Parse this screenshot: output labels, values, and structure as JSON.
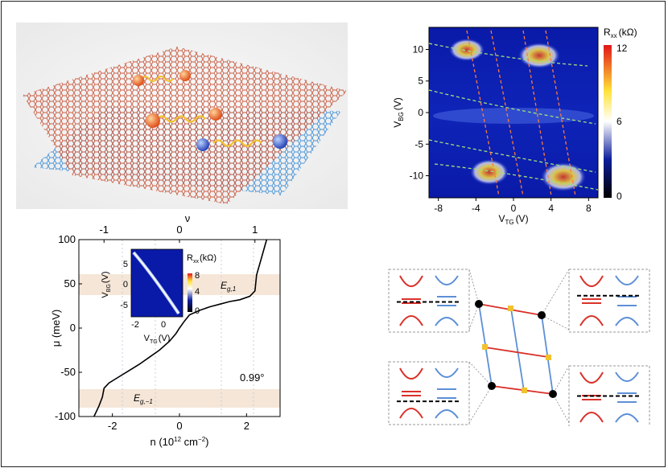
{
  "figure": {
    "panel_a": {
      "description_icon": "twisted-bilayer-graphene-illustration"
    },
    "panel_b": {
      "xlabel_main": "V",
      "xlabel_sub": "TG",
      "xlabel_unit": "(V)",
      "ylabel_main": "V",
      "ylabel_sub": "BG",
      "ylabel_unit": "(V)",
      "colorbar_label_main": "R",
      "colorbar_label_sub": "xx",
      "colorbar_label_unit": "(kΩ)",
      "colorbar_ticks": [
        "12",
        "6",
        "0"
      ],
      "xticks": [
        "-8",
        "-4",
        "0",
        "4",
        "8"
      ],
      "yticks": [
        "10",
        "5",
        "0",
        "-5",
        "-10"
      ]
    },
    "panel_c": {
      "xlabel": "n (10",
      "xlabel_exp1": "12",
      "xlabel_unit": " cm",
      "xlabel_exp2": "−2",
      "xlabel_close": ")",
      "ylabel": "μ (meV)",
      "top_label": "ν",
      "xticks": [
        "-2",
        "0",
        "2"
      ],
      "top_ticks": [
        "-1",
        "0",
        "1"
      ],
      "yticks": [
        "100",
        "50",
        "0",
        "-50",
        "-100"
      ],
      "angle_label": "0.99°",
      "gap_upper_label": "E",
      "gap_upper_sub": "g,1",
      "gap_lower_label": "E",
      "gap_lower_sub": "g,−1",
      "inset": {
        "xlabel_main": "V",
        "xlabel_sub": "TG",
        "xlabel_unit": "(V)",
        "ylabel_main": "V",
        "ylabel_sub": "BG",
        "ylabel_unit": "(V)",
        "colorbar_label_main": "R",
        "colorbar_label_sub": "xx",
        "colorbar_label_unit": "(kΩ)",
        "xticks": [
          "-2",
          "0"
        ],
        "yticks": [
          "5",
          "0",
          "-5"
        ],
        "colorbar_ticks": [
          "8",
          "4",
          "0"
        ]
      }
    },
    "panel_d": {
      "description_icon": "band-alignment-schematic"
    },
    "colors": {
      "red": "#d8322a",
      "blue": "#5d8fd6",
      "gap_band": "#f5e6d8",
      "accent_yellow": "#f2c12e"
    }
  },
  "chart_data": [
    {
      "type": "heatmap",
      "title": "",
      "xlabel": "V_TG (V)",
      "ylabel": "V_BG (V)",
      "xlim": [
        -9,
        9
      ],
      "ylim": [
        -13.5,
        13.5
      ],
      "colorbar": {
        "label": "R_xx (kΩ)",
        "range": [
          0,
          12
        ]
      }
    },
    {
      "type": "line",
      "title": "",
      "xlabel": "n (10^12 cm^-2)",
      "ylabel": "μ (meV)",
      "xlim": [
        -3.0,
        3.0
      ],
      "ylim": [
        -100,
        100
      ],
      "top_axis": {
        "label": "ν",
        "ticks": [
          -1,
          0,
          1
        ]
      },
      "series": [
        {
          "x": [
            -2.55,
            -2.4,
            -2.3,
            -2.25,
            -2.1,
            -1.8,
            -1.5,
            -1.2,
            -0.9,
            -0.6,
            -0.3,
            -0.1,
            0.0,
            0.15,
            0.3,
            0.6,
            0.9,
            1.2,
            1.5,
            1.8,
            2.1,
            2.25,
            2.3,
            2.45,
            2.6
          ],
          "y": [
            -100,
            -88,
            -78,
            -68,
            -62,
            -55,
            -48,
            -41,
            -33,
            -25,
            -15,
            -6,
            0,
            8,
            15,
            20,
            24,
            27,
            30,
            32,
            36,
            42,
            60,
            80,
            100
          ]
        }
      ],
      "shaded_bands": [
        {
          "label": "E_g,1",
          "y_range": [
            37,
            64
          ]
        },
        {
          "label": "E_g,-1",
          "y_range": [
            -88,
            -67
          ]
        }
      ],
      "annotation": "0.99°"
    }
  ]
}
